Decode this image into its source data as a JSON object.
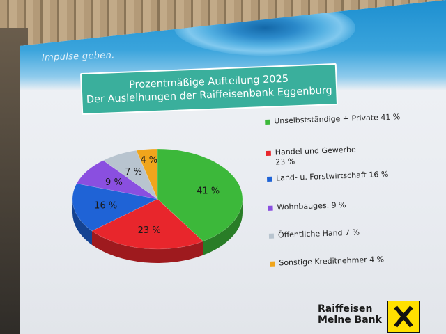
{
  "slide": {
    "tagline": "Impulse geben.",
    "title_line1": "Prozentmäßige Aufteilung 2025",
    "title_line2": "Der Ausleihungen der Raiffeisenbank Eggenburg",
    "logo_line1": "Raiffeisen",
    "logo_line2": "Meine Bank"
  },
  "chart_data": {
    "type": "pie",
    "title": "Prozentmäßige Aufteilung 2025 Der Ausleihungen der Raiffeisenbank Eggenburg",
    "legend_position": "right",
    "slices": [
      {
        "label": "Unselbstständige + Private 41 %",
        "value": 41,
        "data_label": "41 %",
        "color": "#3cb83a"
      },
      {
        "label": "Handel und Gewerbe 23 %",
        "label_lines": [
          "Handel und Gewerbe",
          "23 %"
        ],
        "value": 23,
        "data_label": "23 %",
        "color": "#e8262c"
      },
      {
        "label": "Land- u. Forstwirtschaft 16 %",
        "value": 16,
        "data_label": "16 %",
        "color": "#1f63d6"
      },
      {
        "label": "Wohnbauges. 9 %",
        "value": 9,
        "data_label": "9 %",
        "color": "#8a4fe0"
      },
      {
        "label": "Öffentliche Hand 7 %",
        "value": 7,
        "data_label": "7 %",
        "color": "#b8c4cf"
      },
      {
        "label": "Sonstige Kreditnehmer 4 %",
        "value": 4,
        "data_label": "4 %",
        "color": "#f0a51c"
      }
    ]
  }
}
